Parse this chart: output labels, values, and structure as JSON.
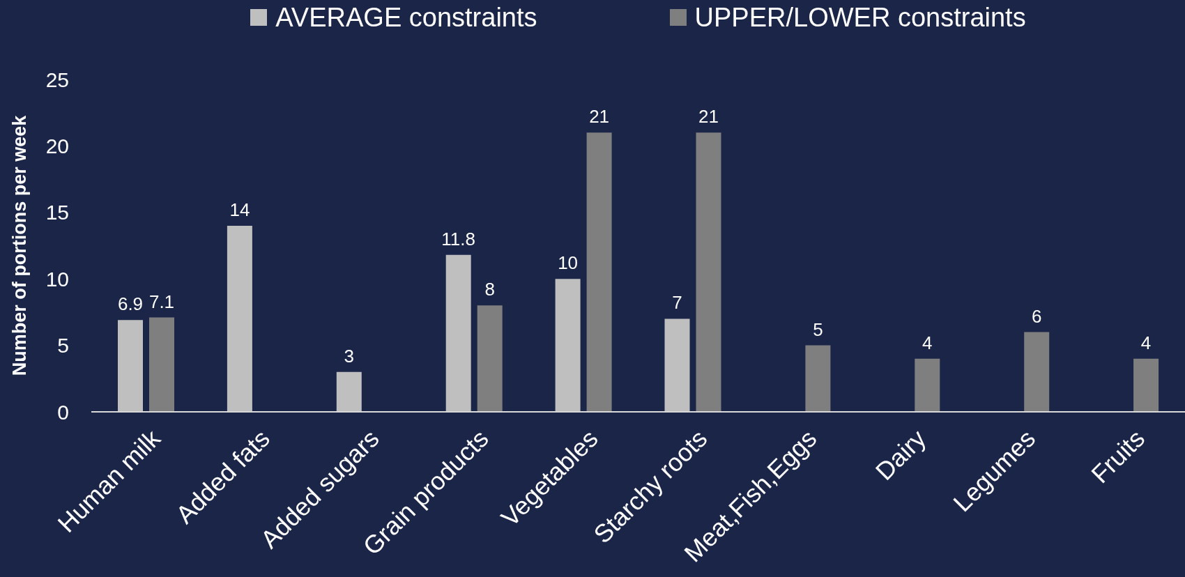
{
  "chart_data": {
    "type": "bar",
    "ylabel": "Number of portions per week",
    "categories": [
      "Human milk",
      "Added fats",
      "Added sugars",
      "Grain products",
      "Vegetables",
      "Starchy roots",
      "Meat,Fish,Eggs",
      "Dairy",
      "Legumes",
      "Fruits"
    ],
    "series": [
      {
        "name": "AVERAGE constraints",
        "color": "#bfbfbf",
        "values": [
          6.9,
          14,
          3,
          11.8,
          10,
          7,
          null,
          null,
          null,
          null
        ]
      },
      {
        "name": "UPPER/LOWER constraints",
        "color": "#7f7f7f",
        "values": [
          7.1,
          null,
          null,
          8,
          21,
          21,
          5,
          4,
          6,
          4
        ]
      }
    ],
    "ylim": [
      0,
      25
    ],
    "yticks": [
      0,
      5,
      10,
      15,
      20,
      25
    ],
    "legend": "top",
    "data_labels": true
  }
}
